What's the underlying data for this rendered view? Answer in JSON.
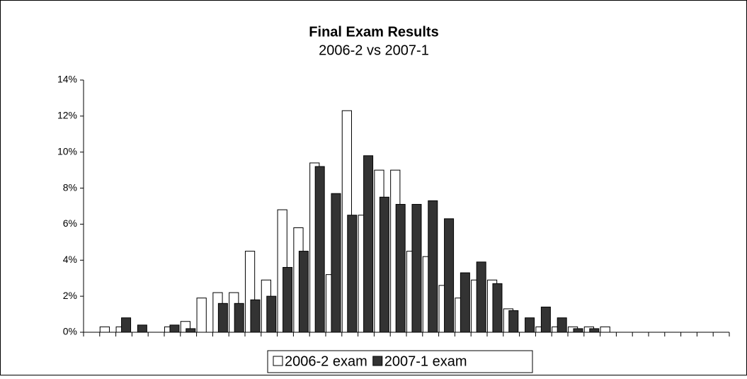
{
  "chart_data": {
    "type": "bar",
    "title": "Final Exam Results",
    "subtitle": "2006-2 vs 2007-1",
    "categories": [
      null,
      null,
      null,
      null,
      null,
      null,
      null,
      null,
      null,
      null,
      null,
      null,
      null,
      null,
      null,
      null,
      null,
      null,
      null,
      null,
      null,
      null,
      null,
      null,
      null,
      null,
      null,
      null,
      null,
      null,
      null,
      null,
      null,
      null,
      null,
      null,
      null,
      null,
      null,
      null
    ],
    "series": [
      {
        "name": "2006-2 exam",
        "color": "#ffffff",
        "values": [
          0,
          0.3,
          0.3,
          0,
          0,
          0.3,
          0.6,
          1.9,
          2.2,
          2.2,
          4.5,
          2.9,
          6.8,
          5.8,
          9.4,
          3.2,
          12.3,
          6.5,
          9.0,
          9.0,
          4.5,
          4.2,
          2.6,
          1.9,
          2.9,
          2.9,
          1.3,
          0,
          0.3,
          0.3,
          0.3,
          0.3,
          0.3,
          0,
          0,
          0,
          0,
          0,
          0,
          0
        ]
      },
      {
        "name": "2007-1 exam",
        "color": "#333333",
        "values": [
          0,
          0,
          0.8,
          0.4,
          0,
          0.4,
          0.2,
          0,
          1.6,
          1.6,
          1.8,
          2.0,
          3.6,
          4.5,
          9.2,
          7.7,
          6.5,
          9.8,
          7.5,
          7.1,
          7.1,
          7.3,
          6.3,
          3.3,
          3.9,
          2.7,
          1.2,
          0.8,
          1.4,
          0.8,
          0.2,
          0.2,
          0,
          0,
          0,
          0,
          0,
          0,
          0,
          0
        ]
      }
    ],
    "ylim": [
      0,
      14
    ],
    "yticks": [
      {
        "value": 0,
        "label": "0%"
      },
      {
        "value": 2,
        "label": "2%"
      },
      {
        "value": 4,
        "label": "4%"
      },
      {
        "value": 6,
        "label": "6%"
      },
      {
        "value": 8,
        "label": "8%"
      },
      {
        "value": 10,
        "label": "10%"
      },
      {
        "value": 12,
        "label": "12%"
      },
      {
        "value": 14,
        "label": "14%"
      }
    ],
    "legend": "bottom"
  }
}
